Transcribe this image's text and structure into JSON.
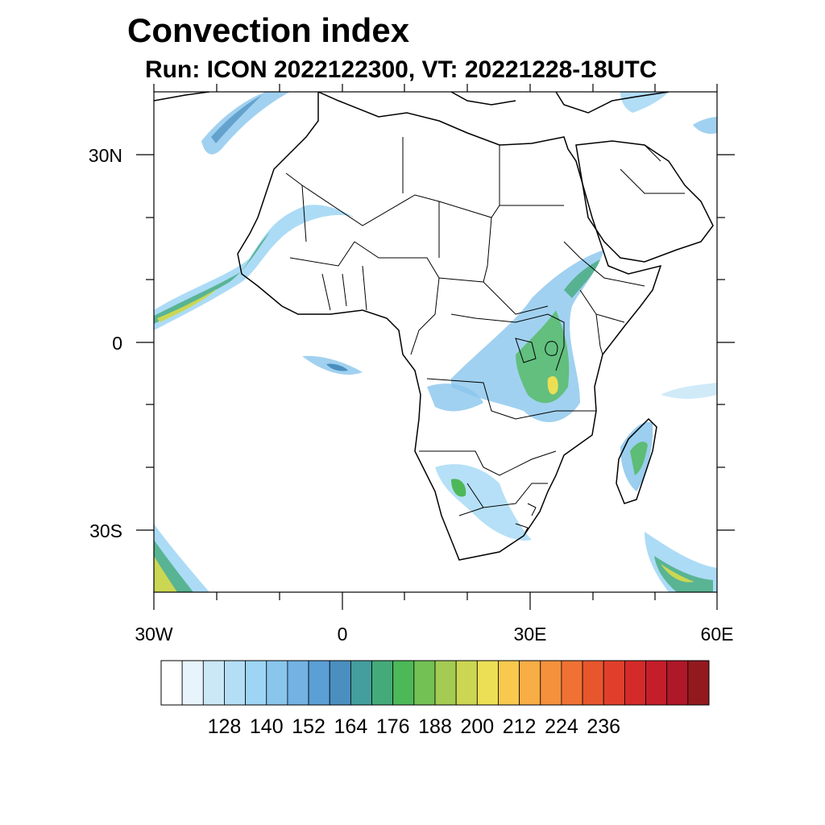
{
  "title": "Convection index",
  "subtitle": "Run: ICON 2022122300,  VT: 20221228-18UTC",
  "lat_labels": [
    {
      "value": 30,
      "text": "30N"
    },
    {
      "value": 0,
      "text": "0"
    },
    {
      "value": -30,
      "text": "30S"
    }
  ],
  "lon_labels": [
    {
      "value": -30,
      "text": "30W"
    },
    {
      "value": 0,
      "text": "0"
    },
    {
      "value": 30,
      "text": "30E"
    },
    {
      "value": 60,
      "text": "60E"
    }
  ],
  "colorbar": {
    "labels": [
      "128",
      "140",
      "152",
      "164",
      "176",
      "188",
      "200",
      "212",
      "224",
      "236"
    ],
    "colors": [
      "#ffffff",
      "#e8f4fb",
      "#cbe8f7",
      "#b4def6",
      "#9ed5f4",
      "#8ac5ec",
      "#73b2e2",
      "#5a9fd6",
      "#4a8fbf",
      "#449e9e",
      "#45aa7a",
      "#4db858",
      "#73c155",
      "#a4cc52",
      "#cbd752",
      "#ecdf55",
      "#f8c94e",
      "#f8ad45",
      "#f5913d",
      "#ef7234",
      "#e8562e",
      "#e0402b",
      "#d42a2a",
      "#c41e2a",
      "#af1828",
      "#921a1f"
    ]
  }
}
